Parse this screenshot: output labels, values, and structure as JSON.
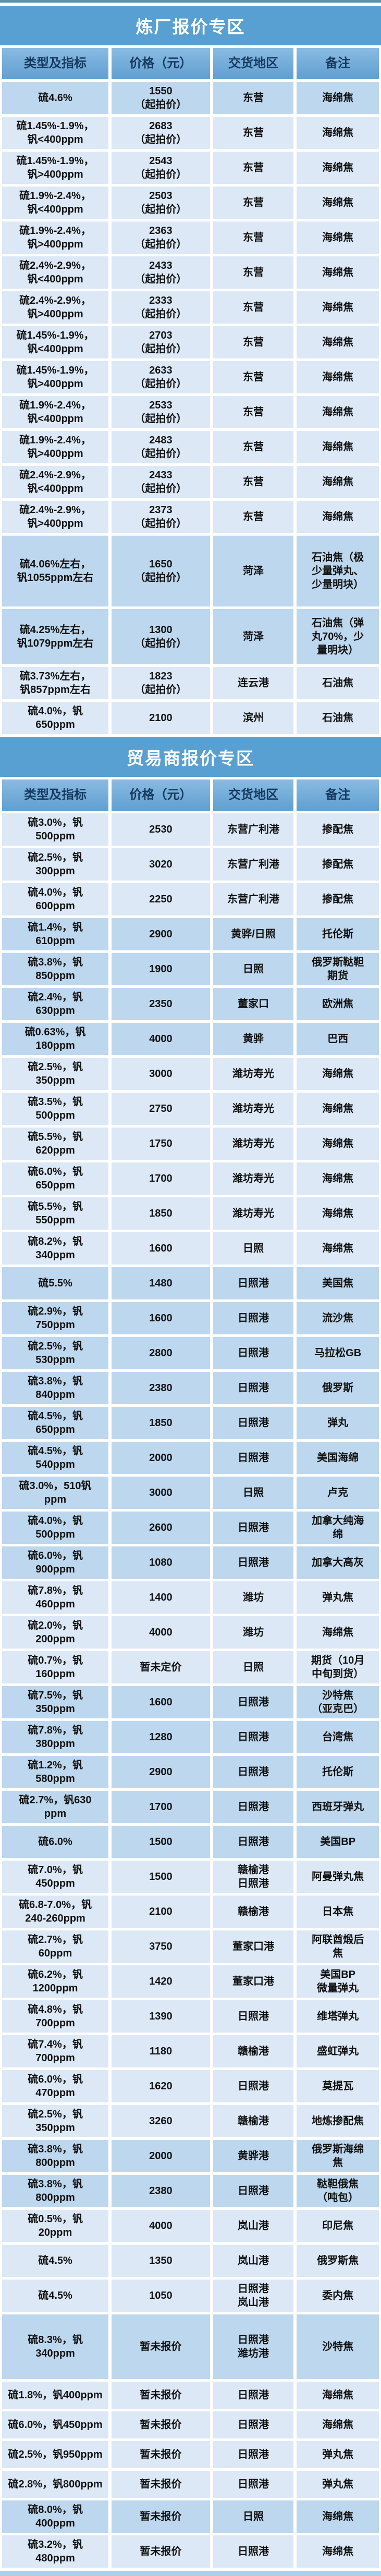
{
  "colors": {
    "title_bar": "#57a0d1",
    "header_top": "#8abbe2",
    "header_bottom": "#5f9fd1",
    "header_text": "#17395f",
    "row_light": "#dce8f6",
    "row_medium": "#bdd7ee",
    "text": "#111111",
    "top_strip": "#5793aa",
    "bottom_strip": "#aecfe9"
  },
  "columns": [
    "类型及指标",
    "价格（元）",
    "交货地区",
    "备注"
  ],
  "sections": [
    {
      "title": "炼厂报价专区",
      "rows": [
        {
          "spec": "硫4.6%",
          "price": "1550\n（起拍价）",
          "area": "东营",
          "note": "海绵焦",
          "shade": "medium"
        },
        {
          "spec": "硫1.45%-1.9%，\n钒<400ppm",
          "price": "2683\n（起拍价）",
          "area": "东营",
          "note": "海绵焦",
          "shade": "light"
        },
        {
          "spec": "硫1.45%-1.9%，\n钒>400ppm",
          "price": "2543\n（起拍价）",
          "area": "东营",
          "note": "海绵焦",
          "shade": "light"
        },
        {
          "spec": "硫1.9%-2.4%，\n钒<400ppm",
          "price": "2503\n（起拍价）",
          "area": "东营",
          "note": "海绵焦",
          "shade": "light"
        },
        {
          "spec": "硫1.9%-2.4%，\n钒>400ppm",
          "price": "2363\n（起拍价）",
          "area": "东营",
          "note": "海绵焦",
          "shade": "light"
        },
        {
          "spec": "硫2.4%-2.9%，\n钒<400ppm",
          "price": "2433\n（起拍价）",
          "area": "东营",
          "note": "海绵焦",
          "shade": "light"
        },
        {
          "spec": "硫2.4%-2.9%，\n钒>400ppm",
          "price": "2333\n（起拍价）",
          "area": "东营",
          "note": "海绵焦",
          "shade": "light"
        },
        {
          "spec": "硫1.45%-1.9%，\n钒<400ppm",
          "price": "2703\n（起拍价）",
          "area": "东营",
          "note": "海绵焦",
          "shade": "light"
        },
        {
          "spec": "硫1.45%-1.9%，\n钒>400ppm",
          "price": "2633\n（起拍价）",
          "area": "东营",
          "note": "海绵焦",
          "shade": "light"
        },
        {
          "spec": "硫1.9%-2.4%，\n钒<400ppm",
          "price": "2533\n（起拍价）",
          "area": "东营",
          "note": "海绵焦",
          "shade": "light"
        },
        {
          "spec": "硫1.9%-2.4%，\n钒>400ppm",
          "price": "2483\n（起拍价）",
          "area": "东营",
          "note": "海绵焦",
          "shade": "light"
        },
        {
          "spec": "硫2.4%-2.9%，\n钒<400ppm",
          "price": "2433\n（起拍价）",
          "area": "东营",
          "note": "海绵焦",
          "shade": "light"
        },
        {
          "spec": "硫2.4%-2.9%，\n钒>400ppm",
          "price": "2373\n（起拍价）",
          "area": "东营",
          "note": "海绵焦",
          "shade": "light"
        },
        {
          "spec": "硫4.06%左右，\n钒1055ppm左右",
          "price": "1650\n（起拍价）",
          "area": "菏泽",
          "note": "石油焦（极\n少量弹丸、\n少量明块）",
          "shade": "medium",
          "mh": 130
        },
        {
          "spec": "硫4.25%左右，\n钒1079ppm左右",
          "price": "1300\n（起拍价）",
          "area": "菏泽",
          "note": "石油焦（弹\n丸70%，少\n量明块）",
          "shade": "medium",
          "mh": 100
        },
        {
          "spec": "硫3.73%左右，\n钒857ppm左右",
          "price": "1823\n（起拍价）",
          "area": "连云港",
          "note": "石油焦",
          "shade": "light"
        },
        {
          "spec": "硫4.0%，钒\n650ppm",
          "price": "2100",
          "area": "滨州",
          "note": "石油焦",
          "shade": "light"
        }
      ]
    },
    {
      "title": "贸易商报价专区",
      "rows": [
        {
          "spec": "硫3.0%，钒\n500ppm",
          "price": "2530",
          "area": "东营广利港",
          "note": "掺配焦",
          "shade": "light"
        },
        {
          "spec": "硫2.5%，钒\n300ppm",
          "price": "3020",
          "area": "东营广利港",
          "note": "掺配焦",
          "shade": "light"
        },
        {
          "spec": "硫4.0%，钒\n600ppm",
          "price": "2250",
          "area": "东营广利港",
          "note": "掺配焦",
          "shade": "light"
        },
        {
          "spec": "硫1.4%，钒\n610ppm",
          "price": "2900",
          "area": "黄骅/日照",
          "note": "托伦斯",
          "shade": "medium"
        },
        {
          "spec": "硫3.8%，钒\n850ppm",
          "price": "1900",
          "area": "日照",
          "note": "俄罗斯鞑靼\n期货",
          "shade": "medium"
        },
        {
          "spec": "硫2.4%，钒\n630ppm",
          "price": "2350",
          "area": "董家口",
          "note": "欧洲焦",
          "shade": "medium"
        },
        {
          "spec": "硫0.63%，钒\n180ppm",
          "price": "4000",
          "area": "黄骅",
          "note": "巴西",
          "shade": "medium"
        },
        {
          "spec": "硫2.5%，钒\n350ppm",
          "price": "3000",
          "area": "潍坊寿光",
          "note": "海绵焦",
          "shade": "light"
        },
        {
          "spec": "硫3.5%，钒\n500ppm",
          "price": "2750",
          "area": "潍坊寿光",
          "note": "海绵焦",
          "shade": "light"
        },
        {
          "spec": "硫5.5%，钒\n620ppm",
          "price": "1750",
          "area": "潍坊寿光",
          "note": "海绵焦",
          "shade": "light"
        },
        {
          "spec": "硫6.0%，钒\n650ppm",
          "price": "1700",
          "area": "潍坊寿光",
          "note": "海绵焦",
          "shade": "light"
        },
        {
          "spec": "硫5.5%，钒\n550ppm",
          "price": "1850",
          "area": "潍坊寿光",
          "note": "海绵焦",
          "shade": "light"
        },
        {
          "spec": "硫8.2%，钒\n340ppm",
          "price": "1600",
          "area": "日照",
          "note": "海绵焦",
          "shade": "light"
        },
        {
          "spec": "硫5.5%",
          "price": "1480",
          "area": "日照港",
          "note": "美国焦",
          "shade": "medium"
        },
        {
          "spec": "硫2.9%，钒\n750ppm",
          "price": "1600",
          "area": "日照港",
          "note": "流沙焦",
          "shade": "medium"
        },
        {
          "spec": "硫2.5%，钒\n530ppm",
          "price": "2800",
          "area": "日照港",
          "note": "马拉松GB",
          "shade": "medium"
        },
        {
          "spec": "硫3.8%，钒\n840ppm",
          "price": "2380",
          "area": "日照港",
          "note": "俄罗斯",
          "shade": "medium"
        },
        {
          "spec": "硫4.5%，钒\n650ppm",
          "price": "1850",
          "area": "日照港",
          "note": "弹丸",
          "shade": "medium"
        },
        {
          "spec": "硫4.5%，钒\n540ppm",
          "price": "2000",
          "area": "日照港",
          "note": "美国海绵",
          "shade": "medium"
        },
        {
          "spec": "硫3.0%，510钒\nppm",
          "price": "3000",
          "area": "日照",
          "note": "卢克",
          "shade": "medium"
        },
        {
          "spec": "硫4.0%，钒\n500ppm",
          "price": "2600",
          "area": "日照港",
          "note": "加拿大纯海\n绵",
          "shade": "medium"
        },
        {
          "spec": "硫6.0%，钒\n900ppm",
          "price": "1080",
          "area": "日照港",
          "note": "加拿大高灰",
          "shade": "medium"
        },
        {
          "spec": "硫7.8%，钒\n460ppm",
          "price": "1400",
          "area": "潍坊",
          "note": "弹丸焦",
          "shade": "light"
        },
        {
          "spec": "硫2.0%，钒\n200ppm",
          "price": "4000",
          "area": "潍坊",
          "note": "海绵焦",
          "shade": "light"
        },
        {
          "spec": "硫0.7%，钒\n160ppm",
          "price": "暂未定价",
          "area": "日照",
          "note": "期货（10月\n中旬到货）",
          "shade": "light"
        },
        {
          "spec": "硫7.5%，钒\n350ppm",
          "price": "1600",
          "area": "日照港",
          "note": "沙特焦\n（亚克巴）",
          "shade": "medium"
        },
        {
          "spec": "硫7.8%，钒\n380ppm",
          "price": "1280",
          "area": "日照港",
          "note": "台湾焦",
          "shade": "medium"
        },
        {
          "spec": "硫1.2%，钒\n580ppm",
          "price": "2900",
          "area": "日照港",
          "note": "托伦斯",
          "shade": "medium"
        },
        {
          "spec": "硫2.7%，钒630\nppm",
          "price": "1700",
          "area": "日照港",
          "note": "西班牙弹丸",
          "shade": "medium"
        },
        {
          "spec": "硫6.0%",
          "price": "1500",
          "area": "日照港",
          "note": "美国BP",
          "shade": "medium"
        },
        {
          "spec": "硫7.0%，钒\n450ppm",
          "price": "1500",
          "area": "赣榆港\n日照港",
          "note": "阿曼弹丸焦",
          "shade": "light"
        },
        {
          "spec": "硫6.8-7.0%，钒\n240-260ppm",
          "price": "2100",
          "area": "赣榆港",
          "note": "日本焦",
          "shade": "light"
        },
        {
          "spec": "硫2.7%，钒\n60ppm",
          "price": "3750",
          "area": "董家口港",
          "note": "阿联酋煅后\n焦",
          "shade": "light"
        },
        {
          "spec": "硫6.2%，钒\n1200ppm",
          "price": "1420",
          "area": "董家口港",
          "note": "美国BP\n微量弹丸",
          "shade": "light"
        },
        {
          "spec": "硫4.8%，钒\n700ppm",
          "price": "1390",
          "area": "日照港",
          "note": "维塔弹丸",
          "shade": "light"
        },
        {
          "spec": "硫7.4%，钒\n700ppm",
          "price": "1180",
          "area": "赣榆港",
          "note": "盛虹弹丸",
          "shade": "light"
        },
        {
          "spec": "硫6.0%，钒\n470ppm",
          "price": "1620",
          "area": "日照港",
          "note": "莫提瓦",
          "shade": "light"
        },
        {
          "spec": "硫2.5%，钒\n350ppm",
          "price": "3260",
          "area": "赣榆港",
          "note": "地炼掺配焦",
          "shade": "light"
        },
        {
          "spec": "硫3.8%，钒\n800ppm",
          "price": "2000",
          "area": "黄骅港",
          "note": "俄罗斯海绵\n焦",
          "shade": "medium"
        },
        {
          "spec": "硫3.8%，钒\n800ppm",
          "price": "2380",
          "area": "日照港",
          "note": "鞑靼俄焦\n（吨包）",
          "shade": "medium"
        },
        {
          "spec": "硫0.5%，钒\n20ppm",
          "price": "4000",
          "area": "岚山港",
          "note": "印尼焦",
          "shade": "light"
        },
        {
          "spec": "硫4.5%",
          "price": "1350",
          "area": "岚山港",
          "note": "俄罗斯焦",
          "shade": "light"
        },
        {
          "spec": "硫4.5%",
          "price": "1050",
          "area": "日照港\n岚山港",
          "note": "委内焦",
          "shade": "light"
        },
        {
          "spec": "硫8.3%，钒\n340ppm",
          "price": "暂未报价",
          "area": "日照港\n潍坊港",
          "note": "沙特焦",
          "shade": "medium",
          "mh": 118
        },
        {
          "spec": "硫1.8%，钒400ppm",
          "price": "暂未报价",
          "area": "日照港",
          "note": "海绵焦",
          "shade": "light",
          "mh": 46
        },
        {
          "spec": "硫6.0%，钒450ppm",
          "price": "暂未报价",
          "area": "日照港",
          "note": "海绵焦",
          "shade": "light",
          "mh": 46
        },
        {
          "spec": "硫2.5%，钒950ppm",
          "price": "暂未报价",
          "area": "日照港",
          "note": "弹丸焦",
          "shade": "light",
          "mh": 46
        },
        {
          "spec": "硫2.8%，钒800ppm",
          "price": "暂未报价",
          "area": "日照港",
          "note": "弹丸焦",
          "shade": "light",
          "mh": 46
        },
        {
          "spec": "硫8.0%，钒\n400ppm",
          "price": "暂未报价",
          "area": "日照",
          "note": "海绵焦",
          "shade": "medium"
        },
        {
          "spec": "硫3.2%，钒\n480ppm",
          "price": "暂未报价",
          "area": "日照港",
          "note": "海绵焦",
          "shade": "light"
        }
      ]
    }
  ]
}
